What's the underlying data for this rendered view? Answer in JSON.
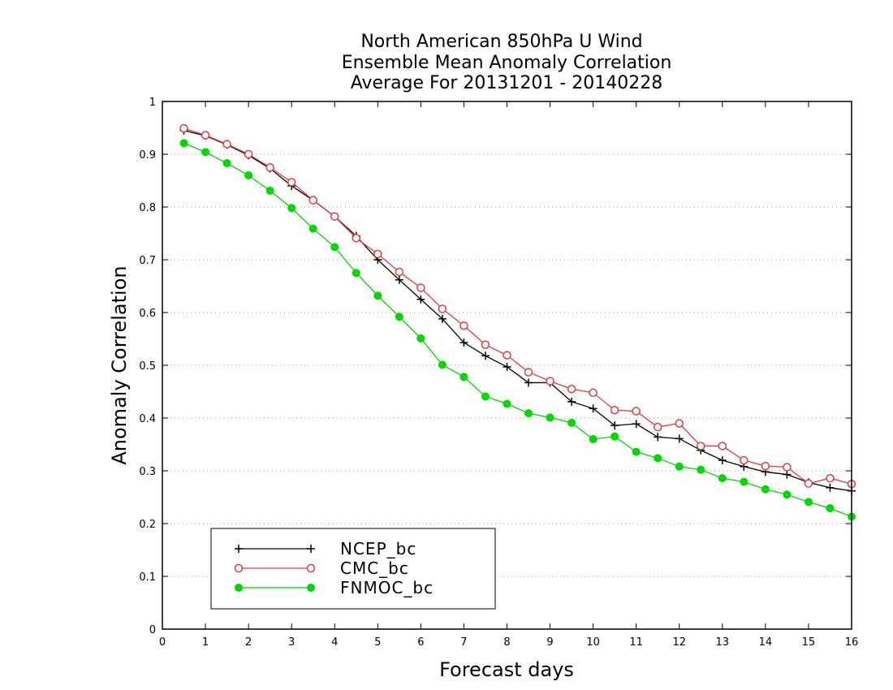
{
  "chart_data": {
    "type": "line",
    "title_lines": [
      "North American 850hPa U Wind",
      "Ensemble Mean Anomaly Correlation",
      "Average For 20131201 - 20140228"
    ],
    "xlabel": "Forecast days",
    "ylabel": "Anomaly Correlation",
    "xlim": [
      0,
      16
    ],
    "ylim": [
      0,
      1
    ],
    "x_ticks": [
      "0",
      "1",
      "2",
      "3",
      "4",
      "5",
      "6",
      "7",
      "8",
      "9",
      "10",
      "11",
      "12",
      "13",
      "14",
      "15",
      "16"
    ],
    "y_ticks": [
      "0",
      "0.1",
      "0.2",
      "0.3",
      "0.4",
      "0.5",
      "0.6",
      "0.7",
      "0.8",
      "0.9",
      "1"
    ],
    "grid": "horizontal dotted",
    "legend_position": "bottom-left",
    "x": [
      0.5,
      1.0,
      1.5,
      2.0,
      2.5,
      3.0,
      3.5,
      4.0,
      4.5,
      5.0,
      5.5,
      6.0,
      6.5,
      7.0,
      7.5,
      8.0,
      8.5,
      9.0,
      9.5,
      10.0,
      10.5,
      11.0,
      11.5,
      12.0,
      12.5,
      13.0,
      13.5,
      14.0,
      14.5,
      15.0,
      15.5,
      16.0
    ],
    "series": [
      {
        "name": "NCEP_bc",
        "color": "#000000",
        "marker": "plus",
        "values": [
          0.945,
          0.935,
          0.918,
          0.898,
          0.873,
          0.84,
          0.813,
          0.782,
          0.745,
          0.7,
          0.662,
          0.625,
          0.588,
          0.543,
          0.518,
          0.497,
          0.467,
          0.467,
          0.431,
          0.418,
          0.386,
          0.389,
          0.364,
          0.361,
          0.339,
          0.32,
          0.308,
          0.298,
          0.293,
          0.278,
          0.268,
          0.262
        ]
      },
      {
        "name": "CMC_bc",
        "color": "#e8383d",
        "marker": "open-circle",
        "values": [
          0.949,
          0.936,
          0.919,
          0.9,
          0.875,
          0.847,
          0.813,
          0.782,
          0.741,
          0.711,
          0.677,
          0.647,
          0.607,
          0.575,
          0.539,
          0.519,
          0.487,
          0.47,
          0.455,
          0.448,
          0.415,
          0.413,
          0.383,
          0.39,
          0.347,
          0.347,
          0.32,
          0.309,
          0.307,
          0.276,
          0.286,
          0.275
        ]
      },
      {
        "name": "FNMOC_bc",
        "color": "#00d800",
        "marker": "filled-circle",
        "values": [
          0.921,
          0.904,
          0.883,
          0.86,
          0.831,
          0.798,
          0.759,
          0.724,
          0.675,
          0.632,
          0.592,
          0.551,
          0.501,
          0.478,
          0.441,
          0.427,
          0.409,
          0.401,
          0.391,
          0.36,
          0.365,
          0.336,
          0.324,
          0.308,
          0.302,
          0.286,
          0.279,
          0.265,
          0.255,
          0.241,
          0.229,
          0.213
        ]
      }
    ]
  }
}
